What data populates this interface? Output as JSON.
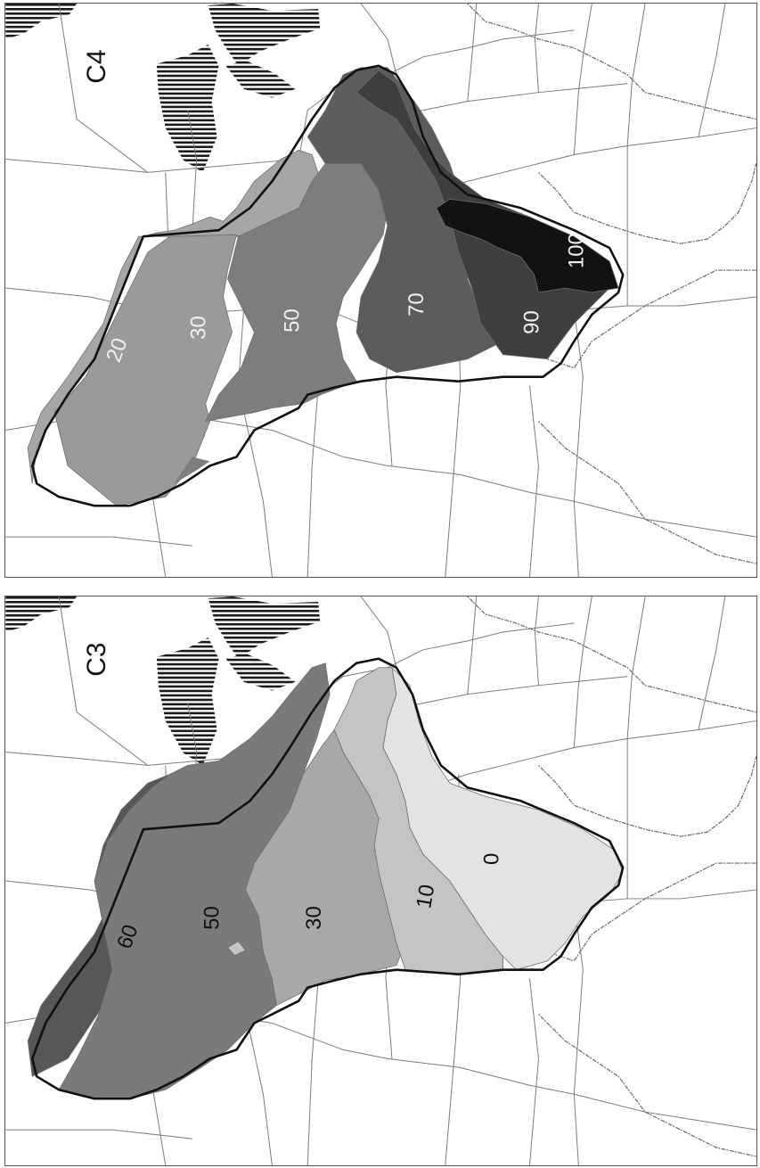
{
  "maps": [
    {
      "title": "C4",
      "zones": [
        {
          "label": "20",
          "shade": "#a6a6a6"
        },
        {
          "label": "30",
          "shade": "#9a9a9a"
        },
        {
          "label": "50",
          "shade": "#7d7d7d"
        },
        {
          "label": "70",
          "shade": "#5c5c5c"
        },
        {
          "label": "90",
          "shade": "#3e3e3e"
        },
        {
          "label": "100",
          "shade": "#121212"
        }
      ],
      "label_color": "#f0f0f0"
    },
    {
      "title": "C3",
      "zones": [
        {
          "label": "60",
          "shade": "#575757"
        },
        {
          "label": "50",
          "shade": "#7a7a7a"
        },
        {
          "label": "30",
          "shade": "#a8a8a8"
        },
        {
          "label": "10",
          "shade": "#c4c4c4"
        },
        {
          "label": "0",
          "shade": "#e3e3e3"
        }
      ],
      "label_color": "#111111"
    }
  ],
  "colors": {
    "hatch": "#1a1a1a",
    "outline": "#111111",
    "state_border": "#7a7a7a"
  }
}
